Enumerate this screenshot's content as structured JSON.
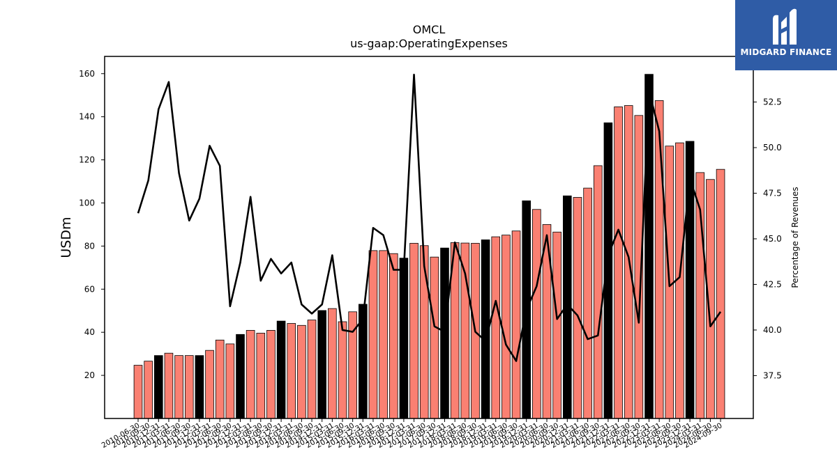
{
  "chart_data": {
    "type": "bar",
    "title": "OMCL",
    "subtitle": "us-gaap:OperatingExpenses",
    "ylabel": "USDm",
    "y2label": "Percentage of Revenues",
    "ylim": [
      0,
      168
    ],
    "y2lim": [
      35.15,
      55.0
    ],
    "yticks": [
      20,
      40,
      60,
      80,
      100,
      120,
      140,
      160
    ],
    "y2ticks": [
      37.5,
      40.0,
      42.5,
      45.0,
      47.5,
      50.0,
      52.5
    ],
    "categories": [
      "2010-06-30",
      "2010-09-30",
      "2010-12-31",
      "2011-03-31",
      "2011-06-30",
      "2011-09-30",
      "2011-12-31",
      "2012-03-31",
      "2012-06-30",
      "2012-09-30",
      "2012-12-31",
      "2013-03-31",
      "2013-06-30",
      "2013-09-30",
      "2013-12-31",
      "2014-03-31",
      "2014-06-30",
      "2014-09-30",
      "2014-12-31",
      "2015-03-31",
      "2015-06-30",
      "2015-09-30",
      "2015-12-31",
      "2016-03-31",
      "2016-06-30",
      "2016-09-30",
      "2016-12-31",
      "2017-03-31",
      "2017-06-30",
      "2017-09-30",
      "2017-12-31",
      "2018-03-31",
      "2018-06-30",
      "2018-09-30",
      "2018-12-31",
      "2019-03-31",
      "2019-06-30",
      "2019-09-30",
      "2019-12-31",
      "2020-03-31",
      "2020-06-30",
      "2020-09-30",
      "2020-12-31",
      "2021-03-31",
      "2021-06-30",
      "2021-09-30",
      "2021-12-31",
      "2022-03-31",
      "2022-06-30",
      "2022-09-30",
      "2022-12-31",
      "2023-03-31",
      "2023-06-30",
      "2023-09-30",
      "2023-12-31",
      "2024-03-31",
      "2024-06-30",
      "2024-09-30"
    ],
    "series": [
      {
        "type": "bar",
        "values": [
          24.7,
          26.6,
          29.2,
          30.3,
          29.2,
          29.2,
          29.2,
          31.6,
          36.4,
          34.6,
          39.0,
          40.9,
          39.6,
          40.9,
          45.2,
          44.1,
          43.2,
          45.7,
          50.1,
          51.0,
          44.9,
          49.5,
          53.0,
          77.9,
          77.9,
          76.5,
          74.4,
          81.3,
          80.2,
          74.9,
          79.1,
          81.6,
          81.4,
          81.3,
          82.9,
          84.3,
          85.1,
          87.0,
          101.0,
          97.0,
          90.0,
          86.5,
          103.3,
          102.6,
          106.9,
          117.3,
          137.2,
          144.6,
          145.2,
          140.6,
          159.7,
          147.5,
          126.4,
          127.9,
          128.6,
          114.1,
          110.9,
          115.6
        ],
        "highlight_indices": [
          2,
          6,
          10,
          14,
          18,
          22,
          26,
          30,
          34,
          38,
          42,
          46,
          50,
          54
        ],
        "colors": {
          "normal": "#fa8072",
          "highlight": "#000000",
          "edge": "#000000"
        }
      },
      {
        "type": "line",
        "color": "#000000",
        "values": [
          46.4,
          48.2,
          52.1,
          53.6,
          48.6,
          46.0,
          47.2,
          50.1,
          49.0,
          41.3,
          43.7,
          47.3,
          42.7,
          43.9,
          43.1,
          43.7,
          41.4,
          40.9,
          41.4,
          44.1,
          40.0,
          39.9,
          40.6,
          45.6,
          45.2,
          43.3,
          43.3,
          54.0,
          43.5,
          40.2,
          39.9,
          44.8,
          43.1,
          39.9,
          39.4,
          41.6,
          39.2,
          38.3,
          41.1,
          42.4,
          45.2,
          40.6,
          41.4,
          40.8,
          39.5,
          39.7,
          44.1,
          45.5,
          44.0,
          40.4,
          53.1,
          50.9,
          42.4,
          42.9,
          48.3,
          46.6,
          40.2,
          41.0
        ]
      }
    ],
    "grid": false,
    "legend": "none"
  },
  "logo": {
    "text": "MIDGARD FINANCE",
    "bg_color": "#2f5ca6",
    "mark_icon": "midgard-logo-icon"
  }
}
